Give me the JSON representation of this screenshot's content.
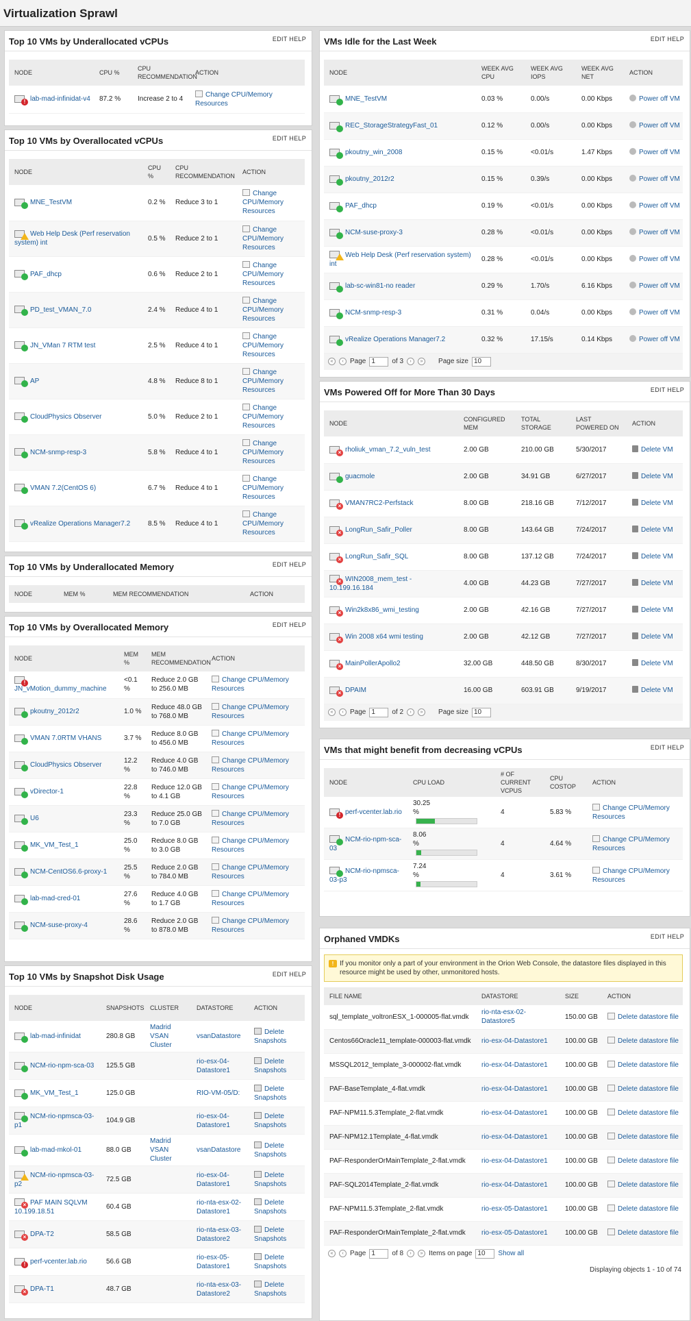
{
  "page_title": "Virtualization Sprawl",
  "panel_links": {
    "edit": "EDIT",
    "help": "HELP"
  },
  "under_vcpu": {
    "title": "Top 10 VMs by Underallocated vCPUs",
    "headers": [
      "NODE",
      "CPU %",
      "CPU RECOMMENDATION",
      "ACTION"
    ],
    "rows": [
      {
        "node": "lab-mad-infinidat-v4",
        "status": "crit",
        "cpu": "87.2 %",
        "rec": "Increase 2 to 4",
        "action": "Change CPU/Memory Resources"
      }
    ]
  },
  "over_vcpu": {
    "title": "Top 10 VMs by Overallocated vCPUs",
    "headers": [
      "NODE",
      "CPU %",
      "CPU RECOMMENDATION",
      "ACTION"
    ],
    "rows": [
      {
        "node": "MNE_TestVM",
        "status": "up",
        "cpu": "0.2 %",
        "rec": "Reduce 3 to 1",
        "action": "Change CPU/Memory Resources"
      },
      {
        "node": "Web Help Desk (Perf reservation system) int",
        "status": "warn",
        "cpu": "0.5 %",
        "rec": "Reduce 2 to 1",
        "action": "Change CPU/Memory Resources"
      },
      {
        "node": "PAF_dhcp",
        "status": "up",
        "cpu": "0.6 %",
        "rec": "Reduce 2 to 1",
        "action": "Change CPU/Memory Resources"
      },
      {
        "node": "PD_test_VMAN_7.0",
        "status": "up",
        "cpu": "2.4 %",
        "rec": "Reduce 4 to 1",
        "action": "Change CPU/Memory Resources"
      },
      {
        "node": "JN_VMan 7 RTM test",
        "status": "up",
        "cpu": "2.5 %",
        "rec": "Reduce 4 to 1",
        "action": "Change CPU/Memory Resources"
      },
      {
        "node": "AP",
        "status": "up",
        "cpu": "4.8 %",
        "rec": "Reduce 8 to 1",
        "action": "Change CPU/Memory Resources"
      },
      {
        "node": "CloudPhysics Observer",
        "status": "up",
        "cpu": "5.0 %",
        "rec": "Reduce 2 to 1",
        "action": "Change CPU/Memory Resources"
      },
      {
        "node": "NCM-snmp-resp-3",
        "status": "up",
        "cpu": "5.8 %",
        "rec": "Reduce 4 to 1",
        "action": "Change CPU/Memory Resources"
      },
      {
        "node": "VMAN 7.2(CentOS 6)",
        "status": "up",
        "cpu": "6.7 %",
        "rec": "Reduce 4 to 1",
        "action": "Change CPU/Memory Resources"
      },
      {
        "node": "vRealize Operations Manager7.2",
        "status": "up",
        "cpu": "8.5 %",
        "rec": "Reduce 4 to 1",
        "action": "Change CPU/Memory Resources"
      }
    ]
  },
  "under_mem": {
    "title": "Top 10 VMs by Underallocated Memory",
    "headers": [
      "NODE",
      "MEM %",
      "MEM RECOMMENDATION",
      "ACTION"
    ]
  },
  "over_mem": {
    "title": "Top 10 VMs by Overallocated Memory",
    "headers": [
      "NODE",
      "MEM %",
      "MEM RECOMMENDATION",
      "ACTION"
    ],
    "rows": [
      {
        "node": "JN_vMotion_dummy_machine",
        "status": "crit",
        "mem": "<0.1 %",
        "rec": "Reduce 2.0 GB to 256.0 MB",
        "action": "Change CPU/Memory Resources"
      },
      {
        "node": "pkoutny_2012r2",
        "status": "up",
        "mem": "1.0 %",
        "rec": "Reduce 48.0 GB to 768.0 MB",
        "action": "Change CPU/Memory Resources"
      },
      {
        "node": "VMAN 7.0RTM VHANS",
        "status": "up",
        "mem": "3.7 %",
        "rec": "Reduce 8.0 GB to 456.0 MB",
        "action": "Change CPU/Memory Resources"
      },
      {
        "node": "CloudPhysics Observer",
        "status": "up",
        "mem": "12.2 %",
        "rec": "Reduce 4.0 GB to 746.0 MB",
        "action": "Change CPU/Memory Resources"
      },
      {
        "node": "vDirector-1",
        "status": "up",
        "mem": "22.8 %",
        "rec": "Reduce 12.0 GB to 4.1 GB",
        "action": "Change CPU/Memory Resources"
      },
      {
        "node": "U6",
        "status": "up",
        "mem": "23.3 %",
        "rec": "Reduce 25.0 GB to 7.0 GB",
        "action": "Change CPU/Memory Resources"
      },
      {
        "node": "MK_VM_Test_1",
        "status": "up",
        "mem": "25.0 %",
        "rec": "Reduce 8.0 GB to 3.0 GB",
        "action": "Change CPU/Memory Resources"
      },
      {
        "node": "NCM-CentOS6.6-proxy-1",
        "status": "up",
        "mem": "25.5 %",
        "rec": "Reduce 2.0 GB to 784.0 MB",
        "action": "Change CPU/Memory Resources"
      },
      {
        "node": "lab-mad-cred-01",
        "status": "up",
        "mem": "27.6 %",
        "rec": "Reduce 4.0 GB to 1.7 GB",
        "action": "Change CPU/Memory Resources"
      },
      {
        "node": "NCM-suse-proxy-4",
        "status": "up",
        "mem": "28.6 %",
        "rec": "Reduce 2.0 GB to 878.0 MB",
        "action": "Change CPU/Memory Resources"
      }
    ]
  },
  "snapshot": {
    "title": "Top 10 VMs by Snapshot Disk Usage",
    "headers": [
      "NODE",
      "SNAPSHOTS",
      "CLUSTER",
      "DATASTORE",
      "ACTION"
    ],
    "rows": [
      {
        "node": "lab-mad-infinidat",
        "status": "up",
        "snap": "280.8 GB",
        "cluster": "Madrid VSAN Cluster",
        "ds": "vsanDatastore",
        "action": "Delete Snapshots"
      },
      {
        "node": "NCM-rio-npm-sca-03",
        "status": "up",
        "snap": "125.5 GB",
        "cluster": "",
        "ds": "rio-esx-04-Datastore1",
        "action": "Delete Snapshots"
      },
      {
        "node": "MK_VM_Test_1",
        "status": "up",
        "snap": "125.0 GB",
        "cluster": "",
        "ds": "RIO-VM-05/D:",
        "action": "Delete Snapshots"
      },
      {
        "node": "NCM-rio-npmsca-03-p1",
        "status": "up",
        "snap": "104.9 GB",
        "cluster": "",
        "ds": "rio-esx-04-Datastore1",
        "action": "Delete Snapshots"
      },
      {
        "node": "lab-mad-mkol-01",
        "status": "up",
        "snap": "88.0 GB",
        "cluster": "Madrid VSAN Cluster",
        "ds": "vsanDatastore",
        "action": "Delete Snapshots"
      },
      {
        "node": "NCM-rio-npmsca-03-p2",
        "status": "warn",
        "snap": "72.5 GB",
        "cluster": "",
        "ds": "rio-esx-04-Datastore1",
        "action": "Delete Snapshots"
      },
      {
        "node": "PAF MAIN SQLVM 10.199.18.51",
        "status": "down",
        "snap": "60.4 GB",
        "cluster": "",
        "ds": "rio-nta-esx-02-Datastore1",
        "action": "Delete Snapshots"
      },
      {
        "node": "DPA-T2",
        "status": "down",
        "snap": "58.5 GB",
        "cluster": "",
        "ds": "rio-nta-esx-03-Datastore2",
        "action": "Delete Snapshots"
      },
      {
        "node": "perf-vcenter.lab.rio",
        "status": "crit",
        "snap": "56.6 GB",
        "cluster": "",
        "ds": "rio-esx-05-Datastore1",
        "action": "Delete Snapshots"
      },
      {
        "node": "DPA-T1",
        "status": "down",
        "snap": "48.7 GB",
        "cluster": "",
        "ds": "rio-nta-esx-03-Datastore2",
        "action": "Delete Snapshots"
      }
    ]
  },
  "idle": {
    "title": "VMs Idle for the Last Week",
    "headers": [
      "NODE",
      "WEEK AVG CPU",
      "WEEK AVG IOPS",
      "WEEK AVG NET",
      "ACTION"
    ],
    "rows": [
      {
        "node": "MNE_TestVM",
        "status": "up",
        "cpu": "0.03 %",
        "iops": "0.00/s",
        "net": "0.00 Kbps",
        "action": "Power off VM"
      },
      {
        "node": "REC_StorageStrategyFast_01",
        "status": "up",
        "cpu": "0.12 %",
        "iops": "0.00/s",
        "net": "0.00 Kbps",
        "action": "Power off VM"
      },
      {
        "node": "pkoutny_win_2008",
        "status": "up",
        "cpu": "0.15 %",
        "iops": "<0.01/s",
        "net": "1.47 Kbps",
        "action": "Power off VM"
      },
      {
        "node": "pkoutny_2012r2",
        "status": "up",
        "cpu": "0.15 %",
        "iops": "0.39/s",
        "net": "0.00 Kbps",
        "action": "Power off VM"
      },
      {
        "node": "PAF_dhcp",
        "status": "up",
        "cpu": "0.19 %",
        "iops": "<0.01/s",
        "net": "0.00 Kbps",
        "action": "Power off VM"
      },
      {
        "node": "NCM-suse-proxy-3",
        "status": "up",
        "cpu": "0.28 %",
        "iops": "<0.01/s",
        "net": "0.00 Kbps",
        "action": "Power off VM"
      },
      {
        "node": "Web Help Desk (Perf reservation system) int",
        "status": "warn",
        "cpu": "0.28 %",
        "iops": "<0.01/s",
        "net": "0.00 Kbps",
        "action": "Power off VM"
      },
      {
        "node": "lab-sc-win81-no reader",
        "status": "up",
        "cpu": "0.29 %",
        "iops": "1.70/s",
        "net": "6.16 Kbps",
        "action": "Power off VM"
      },
      {
        "node": "NCM-snmp-resp-3",
        "status": "up",
        "cpu": "0.31 %",
        "iops": "0.04/s",
        "net": "0.00 Kbps",
        "action": "Power off VM"
      },
      {
        "node": "vRealize Operations Manager7.2",
        "status": "up",
        "cpu": "0.32 %",
        "iops": "17.15/s",
        "net": "0.14 Kbps",
        "action": "Power off VM"
      }
    ],
    "pager": {
      "page_label": "Page",
      "page": "1",
      "of": "of 3",
      "size_label": "Page size",
      "size": "10"
    }
  },
  "poweredoff": {
    "title": "VMs Powered Off for More Than 30 Days",
    "headers": [
      "NODE",
      "CONFIGURED MEM",
      "TOTAL STORAGE",
      "LAST POWERED ON",
      "ACTION"
    ],
    "rows": [
      {
        "node": "rholiuk_vman_7.2_vuln_test",
        "status": "down",
        "mem": "2.00 GB",
        "storage": "210.00 GB",
        "last": "5/30/2017",
        "action": "Delete VM"
      },
      {
        "node": "guacmole",
        "status": "up",
        "mem": "2.00 GB",
        "storage": "34.91 GB",
        "last": "6/27/2017",
        "action": "Delete VM"
      },
      {
        "node": "VMAN7RC2-Perfstack",
        "status": "down",
        "mem": "8.00 GB",
        "storage": "218.16 GB",
        "last": "7/12/2017",
        "action": "Delete VM"
      },
      {
        "node": "LongRun_Safir_Poller",
        "status": "down",
        "mem": "8.00 GB",
        "storage": "143.64 GB",
        "last": "7/24/2017",
        "action": "Delete VM"
      },
      {
        "node": "LongRun_Safir_SQL",
        "status": "down",
        "mem": "8.00 GB",
        "storage": "137.12 GB",
        "last": "7/24/2017",
        "action": "Delete VM"
      },
      {
        "node": "WIN2008_mem_test - 10.199.16.184",
        "status": "down",
        "mem": "4.00 GB",
        "storage": "44.23 GB",
        "last": "7/27/2017",
        "action": "Delete VM"
      },
      {
        "node": "Win2k8x86_wmi_testing",
        "status": "down",
        "mem": "2.00 GB",
        "storage": "42.16 GB",
        "last": "7/27/2017",
        "action": "Delete VM"
      },
      {
        "node": "Win 2008 x64 wmi testing",
        "status": "down",
        "mem": "2.00 GB",
        "storage": "42.12 GB",
        "last": "7/27/2017",
        "action": "Delete VM"
      },
      {
        "node": "MainPollerApollo2",
        "status": "down",
        "mem": "32.00 GB",
        "storage": "448.50 GB",
        "last": "8/30/2017",
        "action": "Delete VM"
      },
      {
        "node": "DPAIM",
        "status": "down",
        "mem": "16.00 GB",
        "storage": "603.91 GB",
        "last": "9/19/2017",
        "action": "Delete VM"
      }
    ],
    "pager": {
      "page_label": "Page",
      "page": "1",
      "of": "of 2",
      "size_label": "Page size",
      "size": "10"
    }
  },
  "decrease": {
    "title": "VMs that might benefit from decreasing vCPUs",
    "headers": [
      "NODE",
      "CPU LOAD",
      "# OF CURRENT VCPUS",
      "CPU COSTOP",
      "ACTION"
    ],
    "rows": [
      {
        "node": "perf-vcenter.lab.rio",
        "status": "crit",
        "load": "30.25 %",
        "load_value": 30.25,
        "vcpus": "4",
        "costop": "5.83 %",
        "action": "Change CPU/Memory Resources"
      },
      {
        "node": "NCM-rio-npm-sca-03",
        "status": "up",
        "load": "8.06 %",
        "load_value": 8.06,
        "vcpus": "4",
        "costop": "4.64 %",
        "action": "Change CPU/Memory Resources"
      },
      {
        "node": "NCM-rio-npmsca-03-p3",
        "status": "up",
        "load": "7.24 %",
        "load_value": 7.24,
        "vcpus": "4",
        "costop": "3.61 %",
        "action": "Change CPU/Memory Resources"
      }
    ]
  },
  "vmdk": {
    "title": "Orphaned VMDKs",
    "note": "If you monitor only a part of your environment in the Orion Web Console, the datastore files displayed in this resource might be used by other, unmonitored hosts.",
    "headers": [
      "FILE NAME",
      "DATASTORE",
      "SIZE",
      "ACTION"
    ],
    "rows": [
      {
        "file": "sql_template_voltronESX_1-000005-flat.vmdk",
        "ds": "rio-nta-esx-02-Datastore5",
        "size": "150.00 GB",
        "action": "Delete datastore file"
      },
      {
        "file": "Centos66Oracle11_template-000003-flat.vmdk",
        "ds": "rio-esx-04-Datastore1",
        "size": "100.00 GB",
        "action": "Delete datastore file"
      },
      {
        "file": "MSSQL2012_template_3-000002-flat.vmdk",
        "ds": "rio-esx-04-Datastore1",
        "size": "100.00 GB",
        "action": "Delete datastore file"
      },
      {
        "file": "PAF-BaseTemplate_4-flat.vmdk",
        "ds": "rio-esx-04-Datastore1",
        "size": "100.00 GB",
        "action": "Delete datastore file"
      },
      {
        "file": "PAF-NPM11.5.3Template_2-flat.vmdk",
        "ds": "rio-esx-04-Datastore1",
        "size": "100.00 GB",
        "action": "Delete datastore file"
      },
      {
        "file": "PAF-NPM12.1Template_4-flat.vmdk",
        "ds": "rio-esx-04-Datastore1",
        "size": "100.00 GB",
        "action": "Delete datastore file"
      },
      {
        "file": "PAF-ResponderOrMainTemplate_2-flat.vmdk",
        "ds": "rio-esx-04-Datastore1",
        "size": "100.00 GB",
        "action": "Delete datastore file"
      },
      {
        "file": "PAF-SQL2014Template_2-flat.vmdk",
        "ds": "rio-esx-04-Datastore1",
        "size": "100.00 GB",
        "action": "Delete datastore file"
      },
      {
        "file": "PAF-NPM11.5.3Template_2-flat.vmdk",
        "ds": "rio-esx-05-Datastore1",
        "size": "100.00 GB",
        "action": "Delete datastore file"
      },
      {
        "file": "PAF-ResponderOrMainTemplate_2-flat.vmdk",
        "ds": "rio-esx-05-Datastore1",
        "size": "100.00 GB",
        "action": "Delete datastore file"
      }
    ],
    "pager": {
      "page_label": "Page",
      "page": "1",
      "of": "of 8",
      "items_label": "Items on page",
      "items": "10",
      "show_all": "Show all",
      "display": "Displaying objects 1 - 10 of 74"
    }
  }
}
